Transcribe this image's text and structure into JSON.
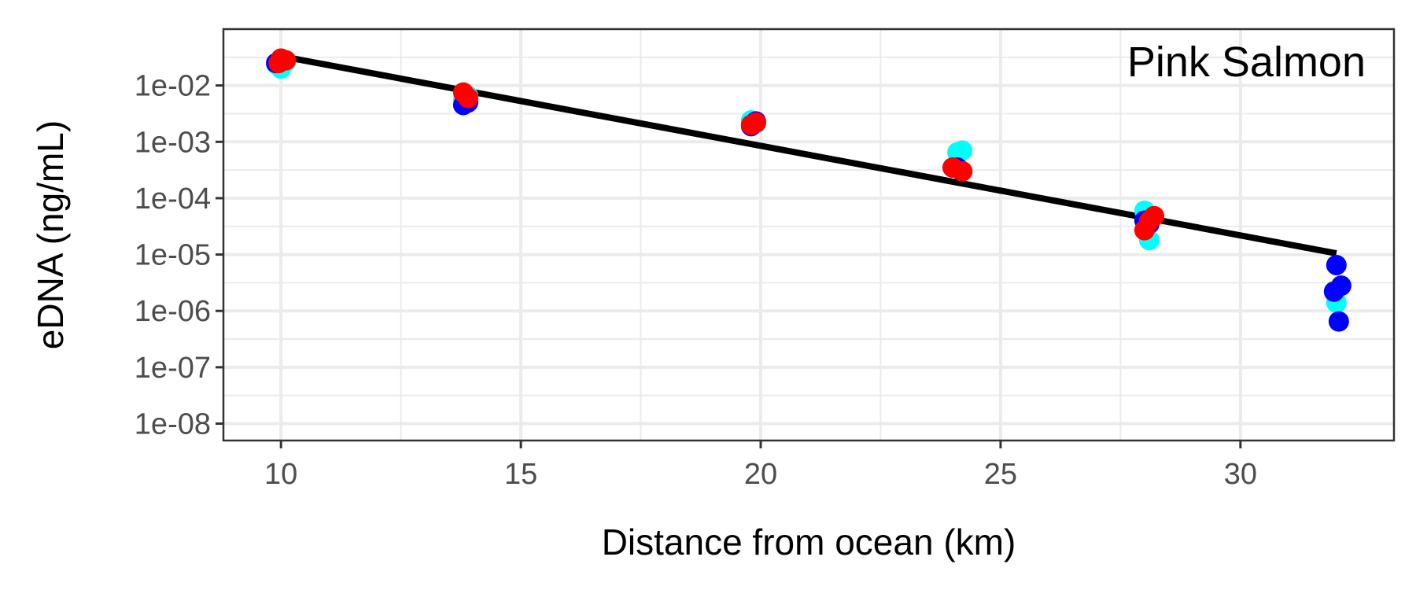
{
  "chart_data": {
    "type": "scatter",
    "title": "",
    "annotation": "Pink Salmon",
    "xlabel": "Distance from ocean (km)",
    "ylabel": "eDNA (ng/mL)",
    "xlim": [
      8.8,
      33.2
    ],
    "ylim_log10": [
      -8.3,
      -1.0
    ],
    "y_scale": "log10",
    "x_ticks": [
      10,
      15,
      20,
      25,
      30
    ],
    "x_tick_labels": [
      "10",
      "15",
      "20",
      "25",
      "30"
    ],
    "y_ticks": [
      0.01,
      0.001,
      0.0001,
      1e-05,
      1e-06,
      1e-07,
      1e-08
    ],
    "y_tick_labels": [
      "1e-02",
      "1e-03",
      "1e-04",
      "1e-05",
      "1e-06",
      "1e-07",
      "1e-08"
    ],
    "grid": true,
    "legend": "none",
    "series": [
      {
        "color": "#00ffff",
        "points": [
          {
            "x": 10.0,
            "y": 0.02
          },
          {
            "x": 9.9,
            "y": 0.024
          },
          {
            "x": 10.1,
            "y": 0.026
          },
          {
            "x": 13.8,
            "y": 0.0055
          },
          {
            "x": 13.9,
            "y": 0.0065
          },
          {
            "x": 19.8,
            "y": 0.0024
          },
          {
            "x": 19.9,
            "y": 0.0021
          },
          {
            "x": 24.1,
            "y": 0.00065
          },
          {
            "x": 24.2,
            "y": 0.0007
          },
          {
            "x": 28.0,
            "y": 6e-05
          },
          {
            "x": 28.1,
            "y": 1.8e-05
          },
          {
            "x": 32.0,
            "y": 1.4e-06
          }
        ]
      },
      {
        "color": "#0000ff",
        "points": [
          {
            "x": 9.9,
            "y": 0.025
          },
          {
            "x": 10.0,
            "y": 0.028
          },
          {
            "x": 13.8,
            "y": 0.0045
          },
          {
            "x": 13.9,
            "y": 0.005
          },
          {
            "x": 19.9,
            "y": 0.0023
          },
          {
            "x": 19.8,
            "y": 0.0019
          },
          {
            "x": 24.1,
            "y": 0.00035
          },
          {
            "x": 24.2,
            "y": 0.0003
          },
          {
            "x": 28.0,
            "y": 4e-05
          },
          {
            "x": 28.1,
            "y": 3.5e-05
          },
          {
            "x": 32.0,
            "y": 6.5e-06
          },
          {
            "x": 32.1,
            "y": 2.8e-06
          },
          {
            "x": 31.95,
            "y": 2.2e-06
          },
          {
            "x": 32.05,
            "y": 6.5e-07
          }
        ]
      },
      {
        "color": "#ff0000",
        "points": [
          {
            "x": 10.0,
            "y": 0.03
          },
          {
            "x": 10.1,
            "y": 0.028
          },
          {
            "x": 9.95,
            "y": 0.025
          },
          {
            "x": 13.8,
            "y": 0.0075
          },
          {
            "x": 13.9,
            "y": 0.006
          },
          {
            "x": 19.8,
            "y": 0.002
          },
          {
            "x": 19.9,
            "y": 0.0022
          },
          {
            "x": 24.0,
            "y": 0.00035
          },
          {
            "x": 24.2,
            "y": 0.0003
          },
          {
            "x": 28.0,
            "y": 2.7e-05
          },
          {
            "x": 28.2,
            "y": 4.8e-05
          },
          {
            "x": 28.1,
            "y": 4e-05
          }
        ]
      }
    ],
    "fit_line": {
      "color": "#000000",
      "points": [
        {
          "x": 10.0,
          "y": 0.033
        },
        {
          "x": 32.0,
          "y": 1.05e-05
        }
      ]
    }
  }
}
